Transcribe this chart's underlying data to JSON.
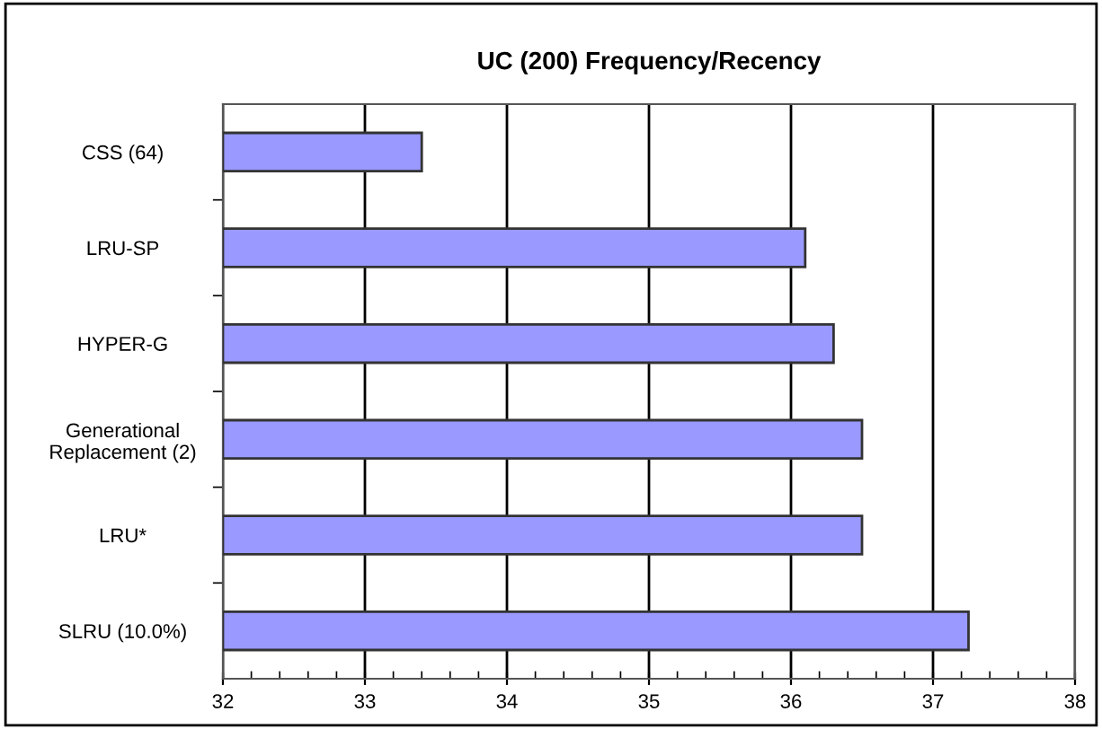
{
  "chart_data": {
    "type": "bar",
    "orientation": "horizontal",
    "title": "UC (200) Frequency/Recency",
    "categories": [
      "CSS (64)",
      "LRU-SP",
      "HYPER-G",
      "Generational\nReplacement (2)",
      "LRU*",
      "SLRU (10.0%)"
    ],
    "values": [
      33.4,
      36.1,
      36.3,
      36.5,
      36.5,
      37.25
    ],
    "color": "#9999ff",
    "xlim": [
      32,
      38
    ],
    "xticks": [
      32,
      33,
      34,
      35,
      36,
      37,
      38
    ],
    "grid": "x",
    "legend": false
  }
}
